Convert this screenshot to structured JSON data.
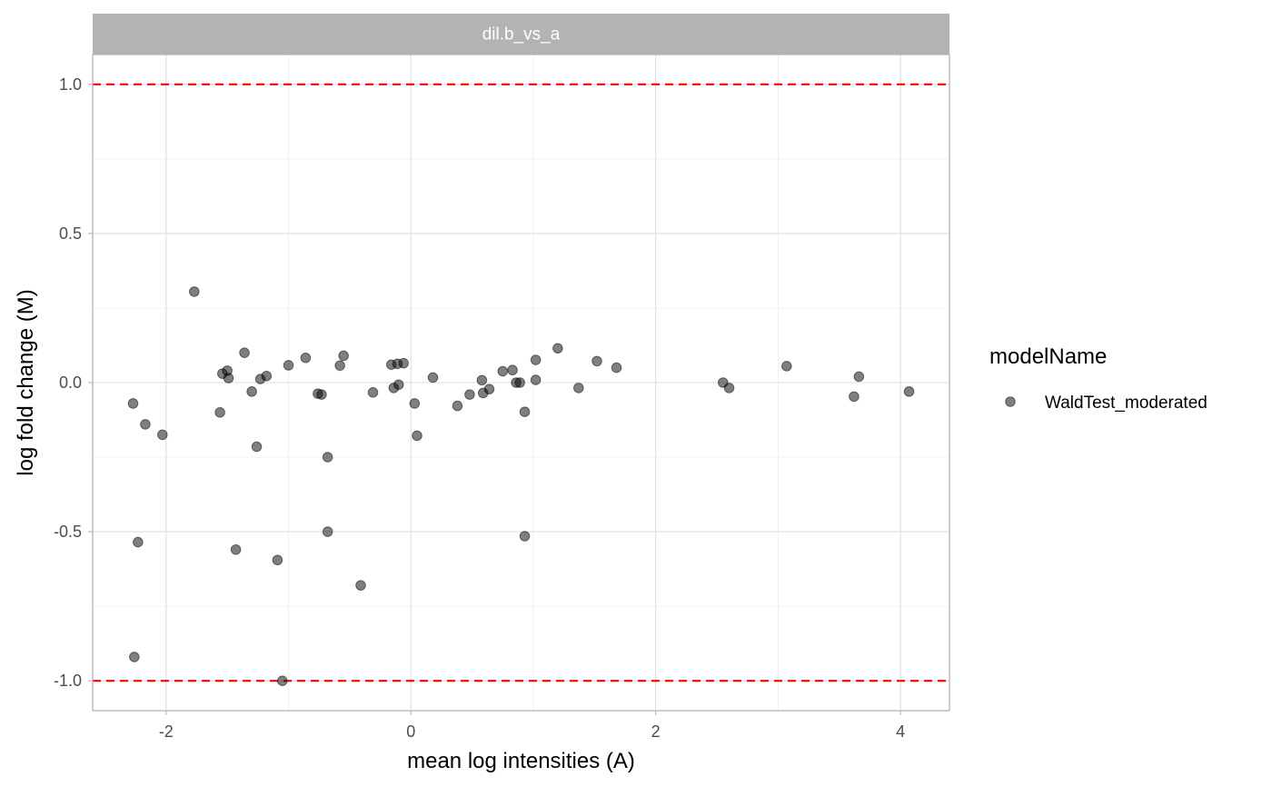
{
  "chart_data": {
    "type": "scatter",
    "facet_label": "dil.b_vs_a",
    "xlabel": "mean log intensities (A)",
    "ylabel": "log fold change (M)",
    "xlim": [
      -2.6,
      4.4
    ],
    "ylim": [
      -1.1,
      1.1
    ],
    "x_ticks": [
      -2,
      0,
      2,
      4
    ],
    "x_tick_labels": [
      "-2",
      "0",
      "2",
      "4"
    ],
    "y_ticks": [
      -1.0,
      -0.5,
      0.0,
      0.5,
      1.0
    ],
    "y_tick_labels": [
      "-1.0",
      "-0.5",
      "0.0",
      "0.5",
      "1.0"
    ],
    "x_minor_ticks": [
      -3,
      -1,
      1,
      3
    ],
    "y_minor_ticks": [
      -0.75,
      -0.25,
      0.25,
      0.75
    ],
    "grid": true,
    "reference_lines": {
      "y": [
        1.0,
        -1.0
      ],
      "color": "#ff0000",
      "style": "dashed"
    },
    "legend": {
      "title": "modelName",
      "position": "right",
      "entries": [
        "WaldTest_moderated"
      ]
    },
    "point_color": "#000000",
    "point_opacity": 0.5,
    "series": [
      {
        "name": "WaldTest_moderated",
        "points": [
          {
            "x": -2.27,
            "y": -0.07
          },
          {
            "x": -2.23,
            "y": -0.535
          },
          {
            "x": -2.26,
            "y": -0.92
          },
          {
            "x": -2.17,
            "y": -0.14
          },
          {
            "x": -2.03,
            "y": -0.175
          },
          {
            "x": -1.77,
            "y": 0.305
          },
          {
            "x": -1.56,
            "y": -0.1
          },
          {
            "x": -1.54,
            "y": 0.03
          },
          {
            "x": -1.5,
            "y": 0.04
          },
          {
            "x": -1.49,
            "y": 0.015
          },
          {
            "x": -1.43,
            "y": -0.56
          },
          {
            "x": -1.36,
            "y": 0.1
          },
          {
            "x": -1.3,
            "y": -0.03
          },
          {
            "x": -1.26,
            "y": -0.215
          },
          {
            "x": -1.23,
            "y": 0.012
          },
          {
            "x": -1.18,
            "y": 0.022
          },
          {
            "x": -1.09,
            "y": -0.595
          },
          {
            "x": -1.05,
            "y": -1.0
          },
          {
            "x": -1.0,
            "y": 0.058
          },
          {
            "x": -0.86,
            "y": 0.083
          },
          {
            "x": -0.76,
            "y": -0.037
          },
          {
            "x": -0.73,
            "y": -0.04
          },
          {
            "x": -0.68,
            "y": -0.25
          },
          {
            "x": -0.68,
            "y": -0.5
          },
          {
            "x": -0.58,
            "y": 0.057
          },
          {
            "x": -0.55,
            "y": 0.09
          },
          {
            "x": -0.31,
            "y": -0.033
          },
          {
            "x": -0.41,
            "y": -0.68
          },
          {
            "x": -0.16,
            "y": 0.06
          },
          {
            "x": -0.14,
            "y": -0.018
          },
          {
            "x": -0.11,
            "y": 0.063
          },
          {
            "x": -0.1,
            "y": -0.007
          },
          {
            "x": -0.06,
            "y": 0.065
          },
          {
            "x": 0.03,
            "y": -0.07
          },
          {
            "x": 0.05,
            "y": -0.178
          },
          {
            "x": 0.18,
            "y": 0.017
          },
          {
            "x": 0.38,
            "y": -0.078
          },
          {
            "x": 0.48,
            "y": -0.04
          },
          {
            "x": 0.58,
            "y": 0.008
          },
          {
            "x": 0.59,
            "y": -0.035
          },
          {
            "x": 0.64,
            "y": -0.022
          },
          {
            "x": 0.75,
            "y": 0.038
          },
          {
            "x": 0.83,
            "y": 0.042
          },
          {
            "x": 0.86,
            "y": 0.0
          },
          {
            "x": 0.89,
            "y": 0.0
          },
          {
            "x": 0.93,
            "y": -0.098
          },
          {
            "x": 0.93,
            "y": -0.515
          },
          {
            "x": 1.02,
            "y": 0.076
          },
          {
            "x": 1.02,
            "y": 0.009
          },
          {
            "x": 1.2,
            "y": 0.115
          },
          {
            "x": 1.37,
            "y": -0.018
          },
          {
            "x": 1.52,
            "y": 0.072
          },
          {
            "x": 1.68,
            "y": 0.05
          },
          {
            "x": 2.55,
            "y": 0.0
          },
          {
            "x": 2.6,
            "y": -0.018
          },
          {
            "x": 3.07,
            "y": 0.055
          },
          {
            "x": 3.62,
            "y": -0.047
          },
          {
            "x": 3.66,
            "y": 0.02
          },
          {
            "x": 4.07,
            "y": -0.03
          }
        ]
      }
    ]
  }
}
